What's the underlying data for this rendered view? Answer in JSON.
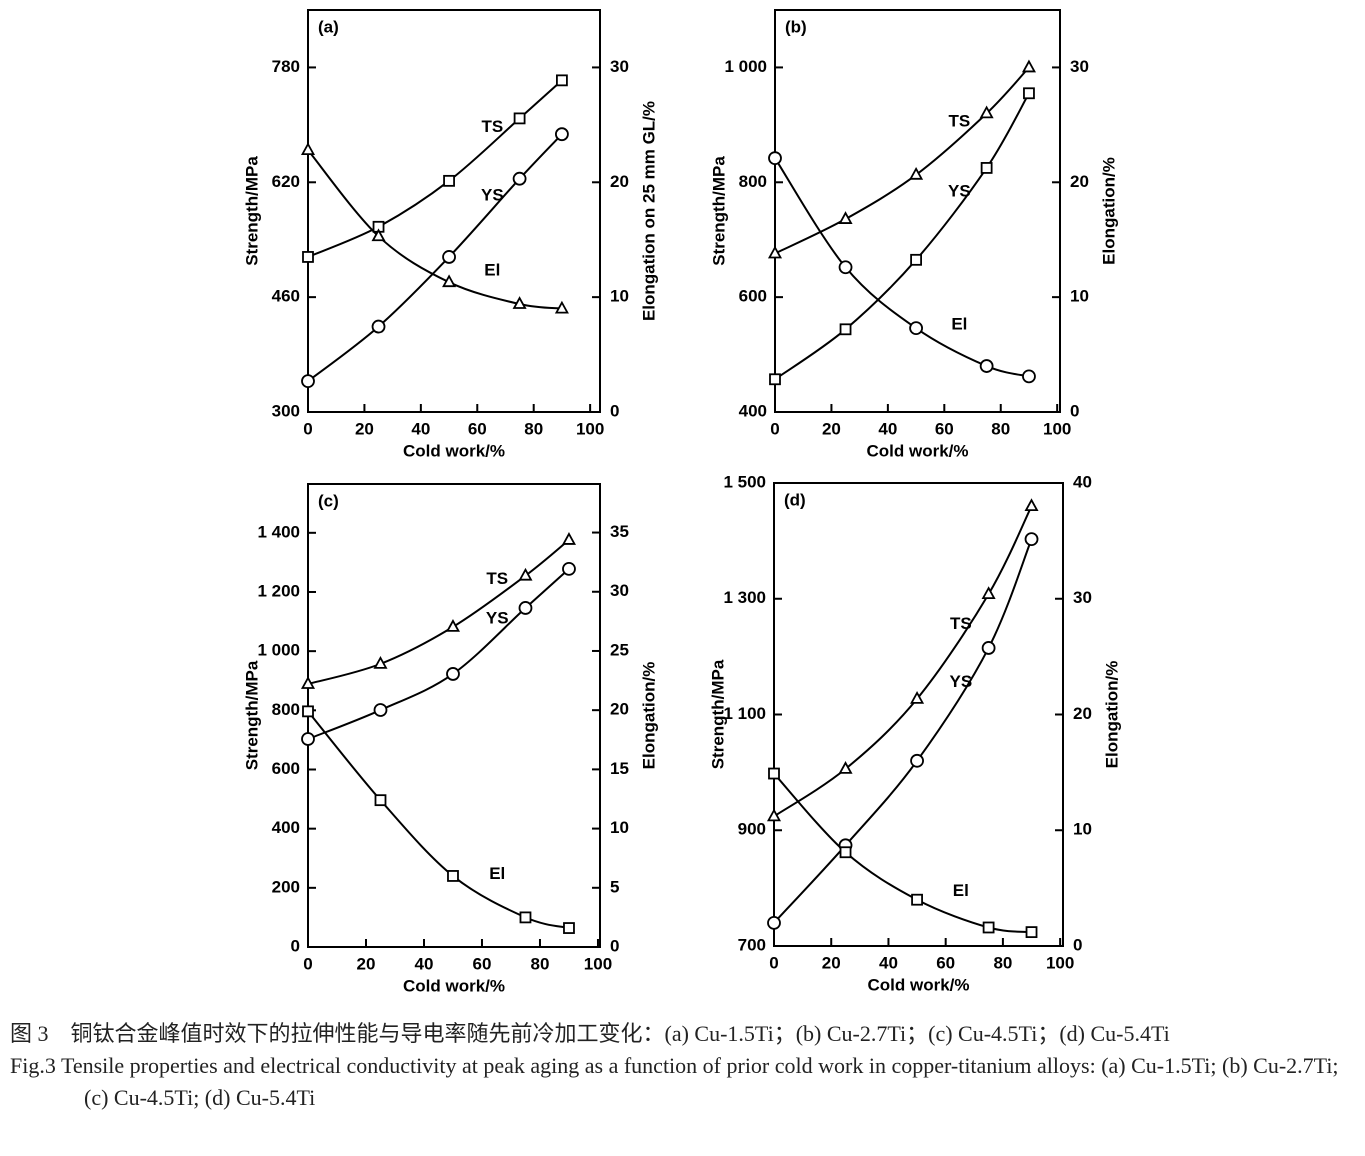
{
  "chart_data": [
    {
      "type": "line",
      "panel": "(a)",
      "x_label": "Cold work/%",
      "y_label": "Strength/MPa",
      "y2_label": "Elongation on 25 mm GL/%",
      "x": [
        0,
        25,
        50,
        75,
        90
      ],
      "xlim": [
        0,
        103.5
      ],
      "xticks": [
        0,
        20,
        40,
        60,
        80,
        100
      ],
      "ylim": [
        300,
        860
      ],
      "yticks": [
        300,
        460,
        620,
        780
      ],
      "y2lim": [
        0,
        35
      ],
      "y2ticks": [
        0,
        10,
        20,
        30
      ],
      "series": [
        {
          "name": "TS",
          "marker": "square",
          "color": "#000",
          "values": [
            516,
            558,
            622,
            709,
            762
          ]
        },
        {
          "name": "YS",
          "marker": "circle",
          "color": "#000",
          "values": [
            343,
            419,
            516,
            625,
            687
          ]
        },
        {
          "name": "El",
          "marker": "triangle",
          "color": "#000",
          "axis": "y2",
          "values": [
            22.8,
            15.3,
            11.3,
            9.4,
            9.0
          ]
        }
      ]
    },
    {
      "type": "line",
      "panel": "(b)",
      "x_label": "Cold work/%",
      "y_label": "Strength/MPa",
      "y2_label": "Elongation/%",
      "x": [
        0,
        25,
        50,
        75,
        90
      ],
      "xlim": [
        0,
        101
      ],
      "xticks": [
        0,
        20,
        40,
        60,
        80,
        100
      ],
      "ylim": [
        400,
        1100
      ],
      "yticks": [
        400,
        600,
        800,
        {
          "value": 1000,
          "label": "1 000"
        }
      ],
      "y2lim": [
        0,
        35
      ],
      "y2ticks": [
        0,
        10,
        20,
        30
      ],
      "series": [
        {
          "name": "TS",
          "marker": "triangle",
          "color": "#000",
          "values": [
            676,
            736,
            813,
            920,
            1000
          ]
        },
        {
          "name": "YS",
          "marker": "square",
          "color": "#000",
          "values": [
            457,
            544,
            665,
            825,
            955
          ]
        },
        {
          "name": "El",
          "marker": "circle",
          "color": "#000",
          "axis": "y2",
          "values": [
            22.1,
            12.6,
            7.3,
            4.0,
            3.1
          ]
        }
      ]
    },
    {
      "type": "line",
      "panel": "(c)",
      "x_label": "Cold work/%",
      "y_label": "Strength/MPa",
      "y2_label": "Elongation/%",
      "x": [
        0,
        25,
        50,
        75,
        90
      ],
      "xlim": [
        0,
        100.7
      ],
      "xticks": [
        0,
        20,
        40,
        60,
        80,
        100
      ],
      "ylim": [
        0,
        1565
      ],
      "yticks": [
        0,
        200,
        400,
        600,
        800,
        {
          "value": 1000,
          "label": "1 000"
        },
        {
          "value": 1200,
          "label": "1 200"
        },
        {
          "value": 1400,
          "label": "1 400"
        }
      ],
      "y2lim": [
        0,
        39.1
      ],
      "y2ticks": [
        0,
        5,
        10,
        15,
        20,
        25,
        30,
        35
      ],
      "series": [
        {
          "name": "TS",
          "marker": "triangle",
          "color": "#000",
          "values": [
            889,
            957,
            1082,
            1255,
            1376
          ]
        },
        {
          "name": "YS",
          "marker": "circle",
          "color": "#000",
          "values": [
            703,
            801,
            923,
            1146,
            1278
          ]
        },
        {
          "name": "El",
          "marker": "square",
          "color": "#000",
          "axis": "y2",
          "values": [
            19.9,
            12.4,
            6.0,
            2.5,
            1.6
          ]
        }
      ]
    },
    {
      "type": "line",
      "panel": "(d)",
      "x_label": "Cold work/%",
      "y_label": "Strength/MPa",
      "y2_label": "Elongation/%",
      "x": [
        0,
        25,
        50,
        75,
        90
      ],
      "xlim": [
        0,
        101
      ],
      "xticks": [
        0,
        20,
        40,
        60,
        80,
        100
      ],
      "ylim": [
        700,
        1500
      ],
      "yticks": [
        700,
        900,
        {
          "value": 1100,
          "label": "1 100"
        },
        {
          "value": 1300,
          "label": "1 300"
        },
        {
          "value": 1500,
          "label": "1 500"
        }
      ],
      "y2lim": [
        0,
        40
      ],
      "y2ticks": [
        0,
        10,
        20,
        30,
        40
      ],
      "series": [
        {
          "name": "TS",
          "marker": "triangle",
          "color": "#000",
          "values": [
            924,
            1006,
            1127,
            1308,
            1460
          ]
        },
        {
          "name": "YS",
          "marker": "circle",
          "color": "#000",
          "values": [
            740,
            874,
            1020,
            1215,
            1403
          ]
        },
        {
          "name": "El",
          "marker": "square",
          "color": "#000",
          "axis": "y2",
          "values": [
            14.9,
            8.1,
            4.0,
            1.6,
            1.2
          ]
        }
      ]
    }
  ],
  "caption": {
    "zh": "图 3　铜钛合金峰值时效下的拉伸性能与导电率随先前冷加工变化：(a) Cu-1.5Ti；(b) Cu-2.7Ti；(c) Cu-4.5Ti；(d) Cu-5.4Ti",
    "en": "Fig.3 Tensile properties and electrical conductivity at peak aging as a function of prior cold work in copper-titanium alloys: (a) Cu-1.5Ti; (b) Cu-2.7Ti; (c) Cu-4.5Ti; (d) Cu-5.4Ti"
  }
}
